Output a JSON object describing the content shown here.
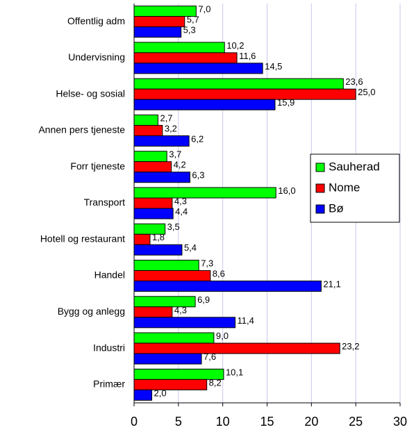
{
  "chart_data": {
    "type": "bar",
    "orientation": "horizontal",
    "categories": [
      "Offentlig adm",
      "Undervisning",
      "Helse- og sosial",
      "Annen pers tjeneste",
      "Forr tjeneste",
      "Transport",
      "Hotell og restaurant",
      "Handel",
      "Bygg og anlegg",
      "Industri",
      "Primær"
    ],
    "series": [
      {
        "name": "Sauherad",
        "color": "#00ff00",
        "values": [
          7.0,
          10.2,
          23.6,
          2.7,
          3.7,
          16.0,
          3.5,
          7.3,
          6.9,
          9.0,
          10.1
        ],
        "value_labels": [
          "7,0",
          "10,2",
          "23,6",
          "2,7",
          "3,7",
          "16,0",
          "3,5",
          "7,3",
          "6,9",
          "9,0",
          "10,1"
        ]
      },
      {
        "name": "Nome",
        "color": "#ff0000",
        "values": [
          5.7,
          11.6,
          25.0,
          3.2,
          4.2,
          4.3,
          1.8,
          8.6,
          4.3,
          23.2,
          8.2
        ],
        "value_labels": [
          "5,7",
          "11,6",
          "25,0",
          "3,2",
          "4,2",
          "4,3",
          "1,8",
          "8,6",
          "4,3",
          "23,2",
          "8,2"
        ]
      },
      {
        "name": "Bø",
        "color": "#0000ff",
        "values": [
          5.3,
          14.5,
          15.9,
          6.2,
          6.3,
          4.4,
          5.4,
          21.1,
          11.4,
          7.6,
          2.0
        ],
        "value_labels": [
          "5,3",
          "14,5",
          "15,9",
          "6,2",
          "6,3",
          "4,4",
          "5,4",
          "21,1",
          "11,4",
          "7,6",
          "2,0"
        ]
      }
    ],
    "xlim": [
      0,
      30
    ],
    "xticks": [
      0,
      5,
      10,
      15,
      20,
      25,
      30
    ],
    "grid": true,
    "legend": "right"
  }
}
